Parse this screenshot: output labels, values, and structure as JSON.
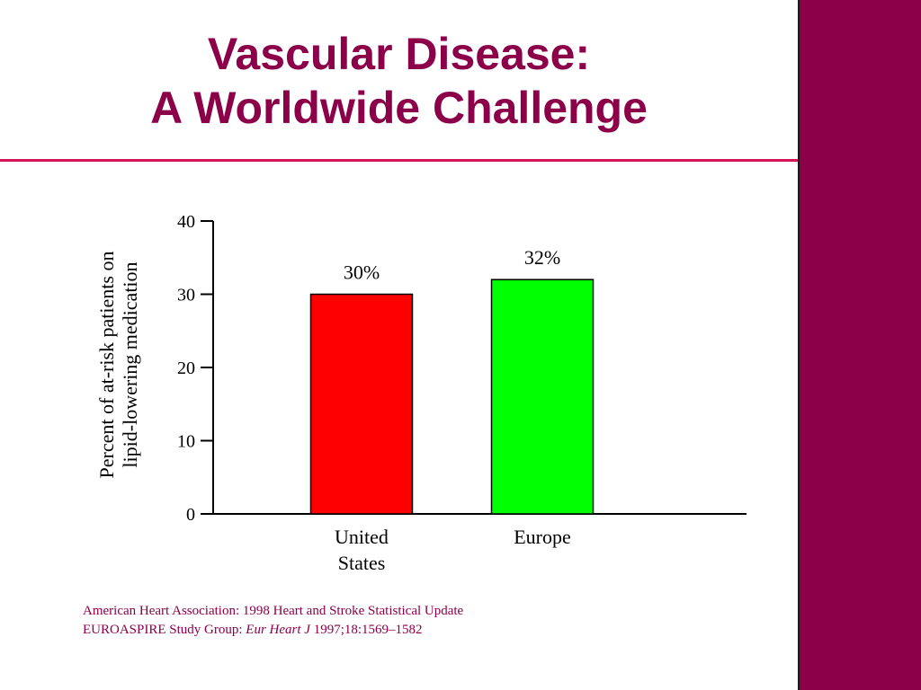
{
  "slide": {
    "title_line1": "Vascular Disease:",
    "title_line2": "A Worldwide Challenge",
    "accent_color": "#8b0048",
    "rule_color": "#d4145a"
  },
  "footer": {
    "ref1": "American Heart Association: 1998 Heart and Stroke Statistical Update",
    "ref2_prefix": "EUROASPIRE Study Group: ",
    "ref2_journal": "Eur Heart J",
    "ref2_suffix": " 1997;18:1569–1582"
  },
  "chart_data": {
    "type": "bar",
    "categories": [
      [
        "United",
        "States"
      ],
      [
        "Europe"
      ]
    ],
    "values": [
      30,
      32
    ],
    "data_labels": [
      "30%",
      "32%"
    ],
    "colors": [
      "#ff0000",
      "#00ff00"
    ],
    "ylabel_line1": "Percent of at-risk patients on",
    "ylabel_line2": "lipid-lowering medication",
    "xlabel": "",
    "ylim": [
      0,
      40
    ],
    "yticks": [
      0,
      10,
      20,
      30,
      40
    ],
    "grid": false,
    "legend": "none"
  }
}
